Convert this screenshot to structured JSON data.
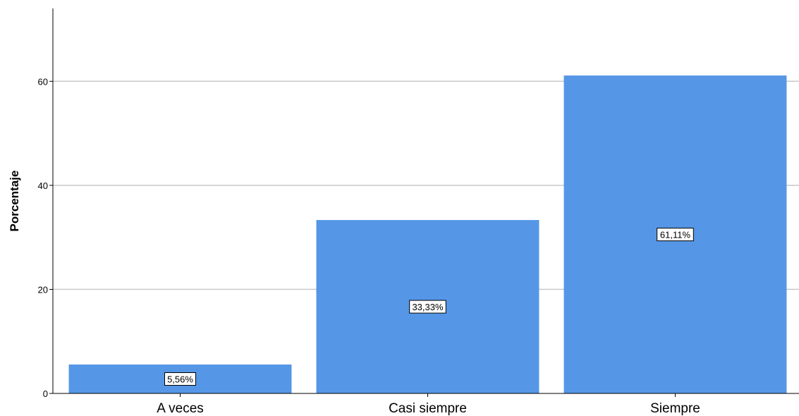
{
  "chart_data": {
    "type": "bar",
    "title": "",
    "xlabel": "",
    "ylabel": "Porcentaje",
    "ylim": [
      0,
      74
    ],
    "yticks": [
      0,
      20,
      40,
      60
    ],
    "grid": true,
    "bar_color": "#5596E6",
    "categories": [
      "A veces",
      "Casi siempre",
      "Siempre"
    ],
    "values": [
      5.56,
      33.33,
      61.11
    ],
    "data_labels": [
      "5,56%",
      "33,33%",
      "61,11%"
    ]
  }
}
